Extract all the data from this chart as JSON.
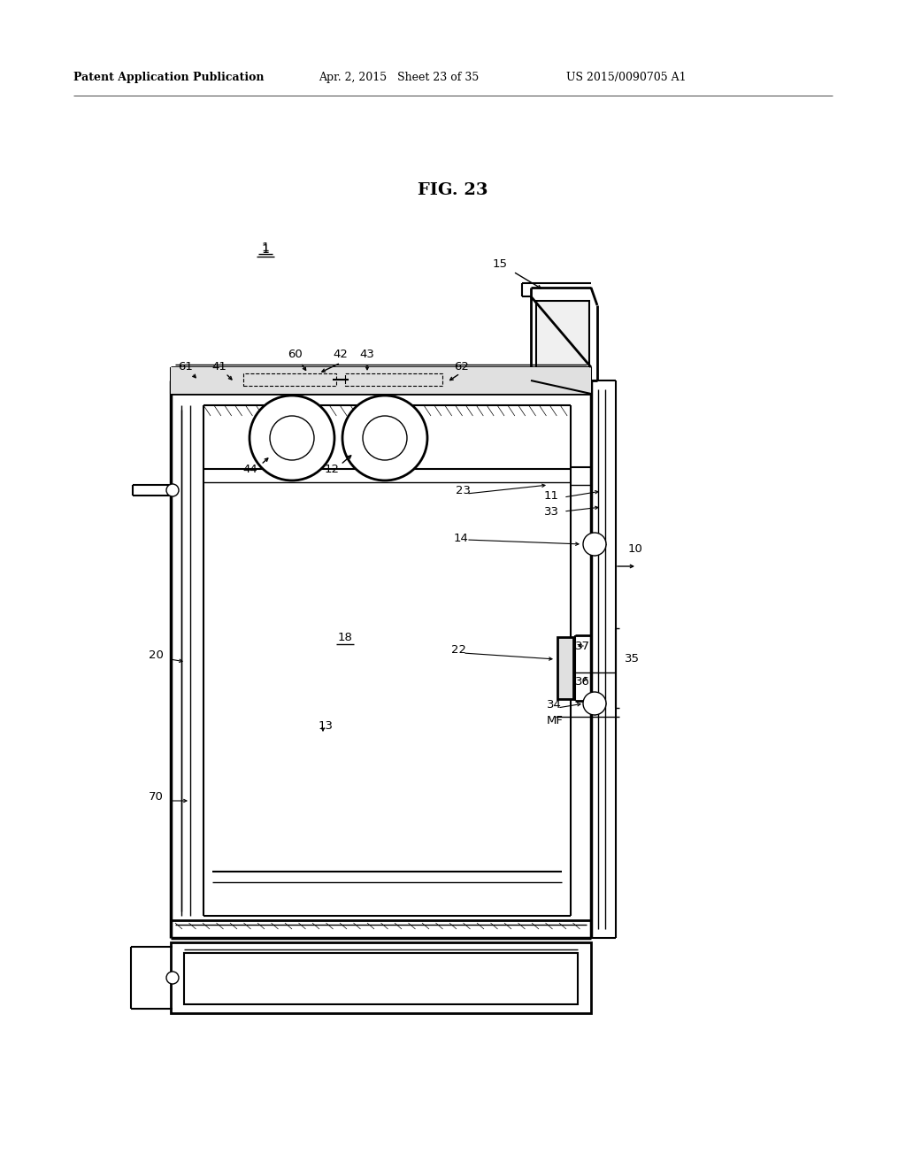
{
  "header_left": "Patent Application Publication",
  "header_middle": "Apr. 2, 2015   Sheet 23 of 35",
  "header_right": "US 2015/0090705 A1",
  "fig_title": "FIG. 23",
  "background_color": "#ffffff"
}
